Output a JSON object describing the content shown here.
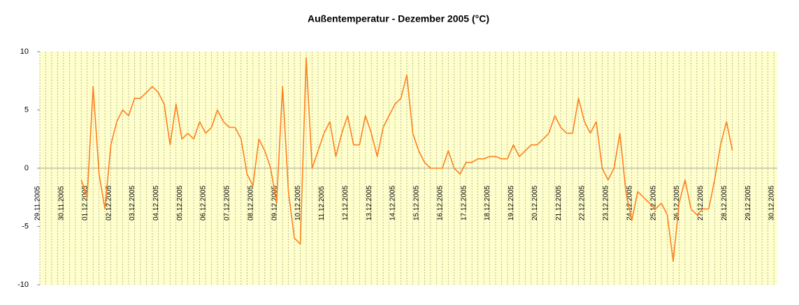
{
  "chart_data": {
    "type": "line",
    "title": "Außentemperatur - Dezember 2005 (°C)",
    "categories": [
      "29.11.2005",
      null,
      null,
      null,
      "30.11.2005",
      null,
      null,
      null,
      "01.12.2005",
      null,
      null,
      null,
      "02.12.2005",
      null,
      null,
      null,
      "03.12.2005",
      null,
      null,
      null,
      "04.12.2005",
      null,
      null,
      null,
      "05.12.2005",
      null,
      null,
      null,
      "06.12.2005",
      null,
      null,
      null,
      "07.12.2005",
      null,
      null,
      null,
      "08.12.2005",
      null,
      null,
      null,
      "09.12.2005",
      null,
      null,
      null,
      "10.12.2005",
      null,
      null,
      null,
      "11.12.2005",
      null,
      null,
      null,
      "12.12.2005",
      null,
      null,
      null,
      "13.12.2005",
      null,
      null,
      null,
      "14.12.2005",
      null,
      null,
      null,
      "15.12.2005",
      null,
      null,
      null,
      "16.12.2005",
      null,
      null,
      null,
      "17.12.2005",
      null,
      null,
      null,
      "18.12.2005",
      null,
      null,
      null,
      "19.12.2005",
      null,
      null,
      null,
      "20.12.2005",
      null,
      null,
      null,
      "21.12.2005",
      null,
      null,
      null,
      "22.12.2005",
      null,
      null,
      null,
      "23.12.2005",
      null,
      null,
      null,
      "24.12.2005",
      null,
      null,
      null,
      "25.12.2005",
      null,
      null,
      null,
      "26.12.2005",
      null,
      null,
      null,
      "27.12.2005",
      null,
      null,
      null,
      "28.12.2005",
      null,
      null,
      null,
      "29.12.2005",
      null,
      null,
      null,
      "30.12.2005"
    ],
    "series": [
      {
        "name": "Außentemperatur",
        "color": "#ff7f1e",
        "values": [
          null,
          null,
          null,
          null,
          null,
          null,
          null,
          -1,
          -2.5,
          7,
          -0.5,
          -3.5,
          2,
          4,
          5,
          4.5,
          6,
          6,
          6.5,
          7,
          6.5,
          5.5,
          2,
          5.5,
          2.5,
          3,
          2.5,
          4,
          3,
          3.5,
          5,
          4,
          3.5,
          3.5,
          2.5,
          -0.5,
          -1.5,
          2.5,
          1.5,
          0,
          -3,
          7,
          -2,
          -6,
          -6.5,
          9.5,
          0,
          1.5,
          3,
          4,
          1,
          3,
          4.5,
          2,
          2,
          4.5,
          3,
          1,
          3.5,
          4.5,
          5.5,
          6,
          8,
          3,
          1.5,
          0.5,
          0,
          0,
          0,
          1.5,
          0,
          -0.5,
          0.5,
          0.5,
          0.8,
          0.8,
          1,
          1,
          0.8,
          0.8,
          2,
          1,
          1.5,
          2,
          2,
          2.5,
          3,
          4.5,
          3.5,
          3,
          3,
          6,
          4,
          3,
          4,
          0,
          -1,
          0,
          3,
          -2,
          -4.5,
          -2,
          -2.5,
          -3,
          -3.5,
          -3,
          -4,
          -8,
          -3,
          -1,
          -3.5,
          -4,
          -3.5,
          -3.5,
          -1,
          2,
          4,
          1.5,
          null,
          null,
          null,
          null,
          null,
          null,
          null
        ]
      }
    ],
    "ylim": [
      -10,
      10
    ],
    "yticks": [
      -10,
      -5,
      0,
      5,
      10
    ],
    "grid": "x",
    "background": "#ffffcc"
  }
}
